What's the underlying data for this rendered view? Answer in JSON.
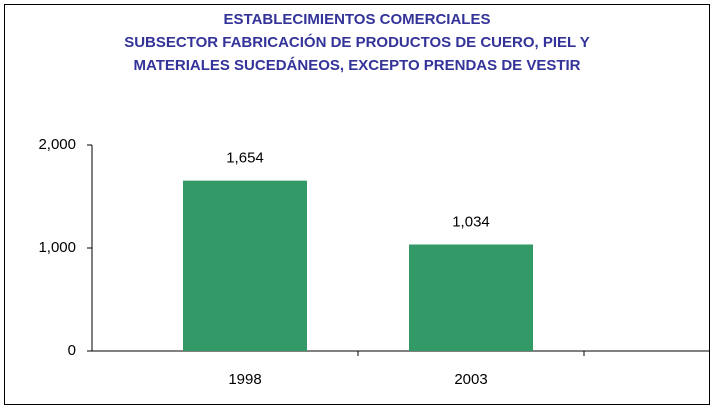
{
  "chart_data": {
    "type": "bar",
    "title": [
      "ESTABLECIMIENTOS COMERCIALES",
      "SUBSECTOR FABRICACIÓN DE PRODUCTOS DE CUERO, PIEL Y",
      "MATERIALES SUCEDÁNEOS, EXCEPTO PRENDAS DE VESTIR"
    ],
    "categories": [
      "1998",
      "2003"
    ],
    "values": [
      1654,
      1034
    ],
    "value_labels": [
      "1,654",
      "1,034"
    ],
    "color": "#339966",
    "ylim": [
      0,
      2000
    ],
    "yticks": [
      0,
      {
        "value": 1000,
        "label": "1,000"
      },
      {
        "value": 2000,
        "label": "2,000"
      }
    ],
    "grid": false
  }
}
